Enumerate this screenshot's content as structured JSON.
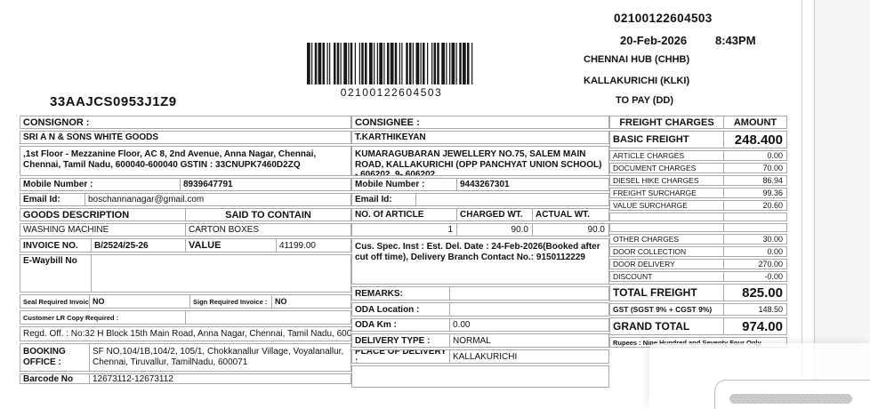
{
  "header": {
    "gstin": "33AAJCS0953J1Z9",
    "barcode_value": "02100122604503",
    "doc_number": "02100122604503",
    "date": "20-Feb-2026",
    "time": "8:43PM",
    "origin_hub": "CHENNAI HUB (CHHB)",
    "destination_hub": "KALLAKURICHI (KLKI)",
    "payment_mode": "TO PAY (DD)"
  },
  "consignor": {
    "section_label": "CONSIGNOR :",
    "name": "SRI A N & SONS WHITE GOODS",
    "address": ",1st Floor - Mezzanine Floor, AC 8, 2nd Avenue, Anna Nagar, Chennai, Chennai, Tamil Nadu, 600040-600040 GSTIN : 33CNUPK7460D2ZQ",
    "mobile_label": "Mobile Number :",
    "mobile": "8939647791",
    "email_label": "Email Id:",
    "email": "boschannanagar@gmail.com"
  },
  "consignee": {
    "section_label": "CONSIGNEE :",
    "name": "T.KARTHIKEYAN",
    "address": "KUMARAGUBARAN JEWELLERY NO.75, SALEM MAIN ROAD, KALLAKURICHI (OPP PANCHYAT UNION SCHOOL) - 606202, 9- 606202",
    "mobile_label": "Mobile Number :",
    "mobile": "9443267301",
    "email_label": "Email Id:",
    "email": ""
  },
  "goods": {
    "description_header": "GOODS DESCRIPTION",
    "contain_header": "SAID TO CONTAIN",
    "description": "WASHING MACHINE",
    "contain": "CARTON BOXES",
    "invoice_label": "INVOICE NO.",
    "invoice_no": "B/2524/25-26",
    "value_label": "VALUE",
    "value": "41199.00",
    "ewaybill_label": "E-Waybill No",
    "seal_label": "Seal Required Invoice :",
    "seal": "NO",
    "sign_label": "Sign Required Invoice :",
    "sign": "NO",
    "lr_copy_label": "Customer LR Copy Required :"
  },
  "article": {
    "count_header": "NO. Of ARTICLE",
    "charged_header": "CHARGED WT.",
    "actual_header": "ACTUAL WT.",
    "count": "1",
    "charged": "90.0",
    "actual": "90.0"
  },
  "delivery": {
    "cus_spec": "Cus. Spec. Inst : Est. Del. Date : 24-Feb-2026(Booked after cut off time), Delivery Branch Contact No.: 9150112229",
    "remarks_label": "REMARKS:",
    "oda_location_label": "ODA Location :",
    "oda_km_label": "ODA Km :",
    "oda_km": "0.00",
    "type_label": "DELIVERY TYPE :",
    "type": "NORMAL",
    "place_label": "PLACE OF DELIVERY :",
    "place": "KALLAKURICHI"
  },
  "footer": {
    "regd_off": "Regd. Off. : No:32 H Block 15th Main Road, Anna Nagar, Chennai, Tamil Nadu, 600040",
    "booking_office_label": "BOOKING OFFICE :",
    "booking_office": "SF NO,104/1B,104/2, 105/1, Chokkanallur Village, Voyalanallur, Chennai, Tiruvallur, TamilNadu, 600071",
    "barcode_no_label": "Barcode No",
    "barcode_no": "12673112-12673112"
  },
  "charges": {
    "header": "FREIGHT CHARGES",
    "amount_header": "AMOUNT",
    "rows": [
      {
        "label": "BASIC FREIGHT",
        "amount": "248.400",
        "style": "basic"
      },
      {
        "label": "ARTICLE CHARGES",
        "amount": "0.00",
        "style": "normal"
      },
      {
        "label": "DOCUMENT CHARGES",
        "amount": "70.00",
        "style": "normal"
      },
      {
        "label": "DIESEL HIKE CHARGES",
        "amount": "86.94",
        "style": "normal"
      },
      {
        "label": "FREIGHT SURCHARGE",
        "amount": "99.36",
        "style": "normal"
      },
      {
        "label": "VALUE SURCHARGE",
        "amount": "20.60",
        "style": "normal"
      },
      {
        "label": "",
        "amount": "",
        "style": "empty"
      },
      {
        "label": "",
        "amount": "",
        "style": "empty"
      },
      {
        "label": "OTHER CHARGES",
        "amount": "30.00",
        "style": "normal"
      },
      {
        "label": "DOOR COLLECTION",
        "amount": "0.00",
        "style": "normal"
      },
      {
        "label": "DOOR DELIVERY",
        "amount": "270.00",
        "style": "normal"
      },
      {
        "label": "DISCOUNT",
        "amount": "-0.00",
        "style": "normal"
      },
      {
        "label": "TOTAL FREIGHT",
        "amount": "825.00",
        "style": "total"
      },
      {
        "label": "GST  (SGST 9% + CGST 9%)",
        "amount": "148.50",
        "style": "gst"
      },
      {
        "label": "GRAND TOTAL",
        "amount": "974.00",
        "style": "total"
      }
    ],
    "rupees": "Rupees : Nine Hundred and Seventy Four Only"
  }
}
